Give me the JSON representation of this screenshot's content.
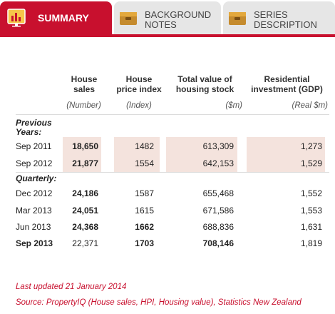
{
  "tabs": [
    {
      "label": "SUMMARY",
      "icon": "bar-chart-icon",
      "active": true
    },
    {
      "label": "BACKGROUND NOTES",
      "line1": "BACKGROUND",
      "line2": "NOTES",
      "icon": "box-icon",
      "active": false
    },
    {
      "label": "SERIES DESCRIPTION",
      "line1": "SERIES",
      "line2": "DESCRIPTION",
      "icon": "box-icon",
      "active": false
    }
  ],
  "colors": {
    "accent": "#c8102e",
    "shade": "#f4e3dd",
    "tab_inactive": "#e6e6e6"
  },
  "table": {
    "columns": [
      {
        "line1": "House",
        "line2": "sales",
        "unit": "(Number)"
      },
      {
        "line1": "House",
        "line2": "price index",
        "unit": "(Index)"
      },
      {
        "line1": "Total value of",
        "line2": "housing stock",
        "unit": "($m)"
      },
      {
        "line1": "Residential",
        "line2": "investment (GDP)",
        "unit": "(Real $m)"
      }
    ],
    "groups": {
      "previous_line1": "Previous",
      "previous_line2": "Years:",
      "quarterly": "Quarterly:"
    },
    "previous_years": [
      {
        "label": "Sep 2011",
        "sales": "18,650",
        "hpi": "1482",
        "stock": "613,309",
        "invest": "1,273"
      },
      {
        "label": "Sep 2012",
        "sales": "21,877",
        "hpi": "1554",
        "stock": "642,153",
        "invest": "1,529"
      }
    ],
    "quarterly": [
      {
        "label": "Dec 2012",
        "sales": "24,186",
        "hpi": "1587",
        "stock": "655,468",
        "invest": "1,552"
      },
      {
        "label": "Mar 2013",
        "sales": "24,051",
        "hpi": "1615",
        "stock": "671,586",
        "invest": "1,553"
      },
      {
        "label": "Jun 2013",
        "sales": "24,368",
        "hpi": "1662",
        "stock": "688,836",
        "invest": "1,631"
      },
      {
        "label": "Sep 2013",
        "sales": "22,371",
        "hpi": "1703",
        "stock": "708,146",
        "invest": "1,819"
      }
    ]
  },
  "footer": {
    "updated": "Last updated 21 January 2014",
    "source": "Source: PropertyIQ (House sales, HPI, Housing value), Statistics New Zealand"
  }
}
